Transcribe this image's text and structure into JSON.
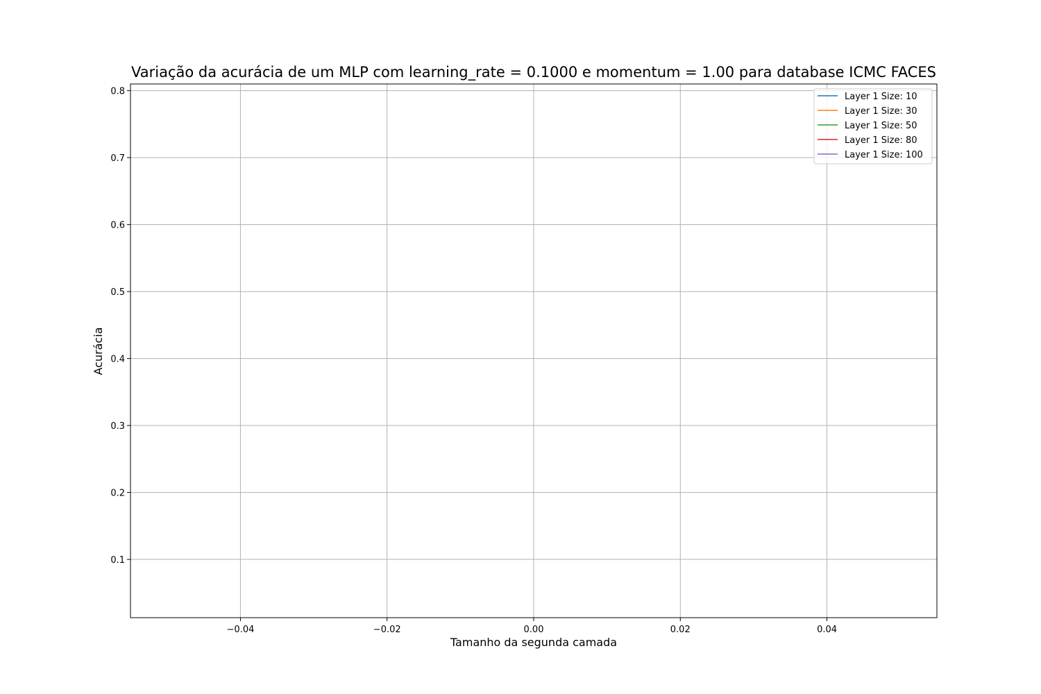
{
  "chart_data": {
    "type": "line",
    "title": "Variação da acurácia de um MLP com learning_rate = 0.1000 e momentum = 1.00 para database ICMC FACES",
    "xlabel": "Tamanho da segunda camada",
    "ylabel": "Acurácia",
    "xlim": [
      -0.055,
      0.055
    ],
    "ylim": [
      0.013,
      0.81
    ],
    "xticks": [
      -0.04,
      -0.02,
      0.0,
      0.02,
      0.04
    ],
    "xtick_labels": [
      "−0.04",
      "−0.02",
      "0.00",
      "0.02",
      "0.04"
    ],
    "yticks": [
      0.1,
      0.2,
      0.3,
      0.4,
      0.5,
      0.6,
      0.7,
      0.8
    ],
    "ytick_labels": [
      "0.1",
      "0.2",
      "0.3",
      "0.4",
      "0.5",
      "0.6",
      "0.7",
      "0.8"
    ],
    "grid": true,
    "legend_position": "top-right",
    "series": [
      {
        "name": "Layer 1 Size: 10",
        "color": "#1f77b4",
        "x": [],
        "values": []
      },
      {
        "name": "Layer 1 Size: 30",
        "color": "#ff7f0e",
        "x": [],
        "values": []
      },
      {
        "name": "Layer 1 Size: 50",
        "color": "#2ca02c",
        "x": [],
        "values": []
      },
      {
        "name": "Layer 1 Size: 80",
        "color": "#d62728",
        "x": [],
        "values": []
      },
      {
        "name": "Layer 1 Size: 100",
        "color": "#9467bd",
        "x": [],
        "values": []
      }
    ]
  }
}
